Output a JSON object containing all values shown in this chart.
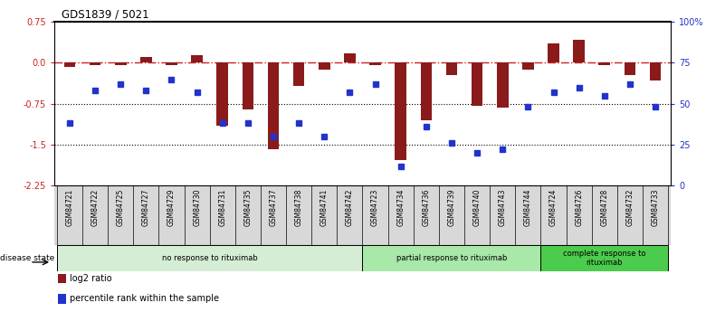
{
  "title": "GDS1839 / 5021",
  "samples": [
    "GSM84721",
    "GSM84722",
    "GSM84725",
    "GSM84727",
    "GSM84729",
    "GSM84730",
    "GSM84731",
    "GSM84735",
    "GSM84737",
    "GSM84738",
    "GSM84741",
    "GSM84742",
    "GSM84723",
    "GSM84734",
    "GSM84736",
    "GSM84739",
    "GSM84740",
    "GSM84743",
    "GSM84744",
    "GSM84724",
    "GSM84726",
    "GSM84728",
    "GSM84732",
    "GSM84733"
  ],
  "log2_ratio": [
    -0.07,
    -0.05,
    -0.05,
    0.1,
    -0.05,
    0.14,
    -1.15,
    -0.85,
    -1.58,
    -0.42,
    -0.13,
    0.18,
    -0.05,
    -1.78,
    -1.05,
    -0.22,
    -0.78,
    -0.82,
    -0.13,
    0.36,
    0.42,
    -0.05,
    -0.22,
    -0.32
  ],
  "percentile_rank": [
    38,
    58,
    62,
    58,
    65,
    57,
    38,
    38,
    30,
    38,
    30,
    57,
    62,
    12,
    36,
    26,
    20,
    22,
    48,
    57,
    60,
    55,
    62,
    48
  ],
  "groups": [
    {
      "label": "no response to rituximab",
      "start": 0,
      "end": 12,
      "color": "#d4edd4"
    },
    {
      "label": "partial response to rituximab",
      "start": 12,
      "end": 19,
      "color": "#a8e8a8"
    },
    {
      "label": "complete response to\nrituximab",
      "start": 19,
      "end": 24,
      "color": "#4ccc4c"
    }
  ],
  "ylim_left": [
    -2.25,
    0.75
  ],
  "ylim_right": [
    0,
    100
  ],
  "yticks_left": [
    0.75,
    0.0,
    -0.75,
    -1.5,
    -2.25
  ],
  "yticks_right": [
    100,
    75,
    50,
    25,
    0
  ],
  "bar_color": "#8b1a1a",
  "dot_color": "#2233cc",
  "zero_line_color": "#cc2222",
  "grid_color": "#333333",
  "legend_items": [
    {
      "label": "log2 ratio",
      "color": "#8b1a1a"
    },
    {
      "label": "percentile rank within the sample",
      "color": "#2233cc"
    }
  ]
}
